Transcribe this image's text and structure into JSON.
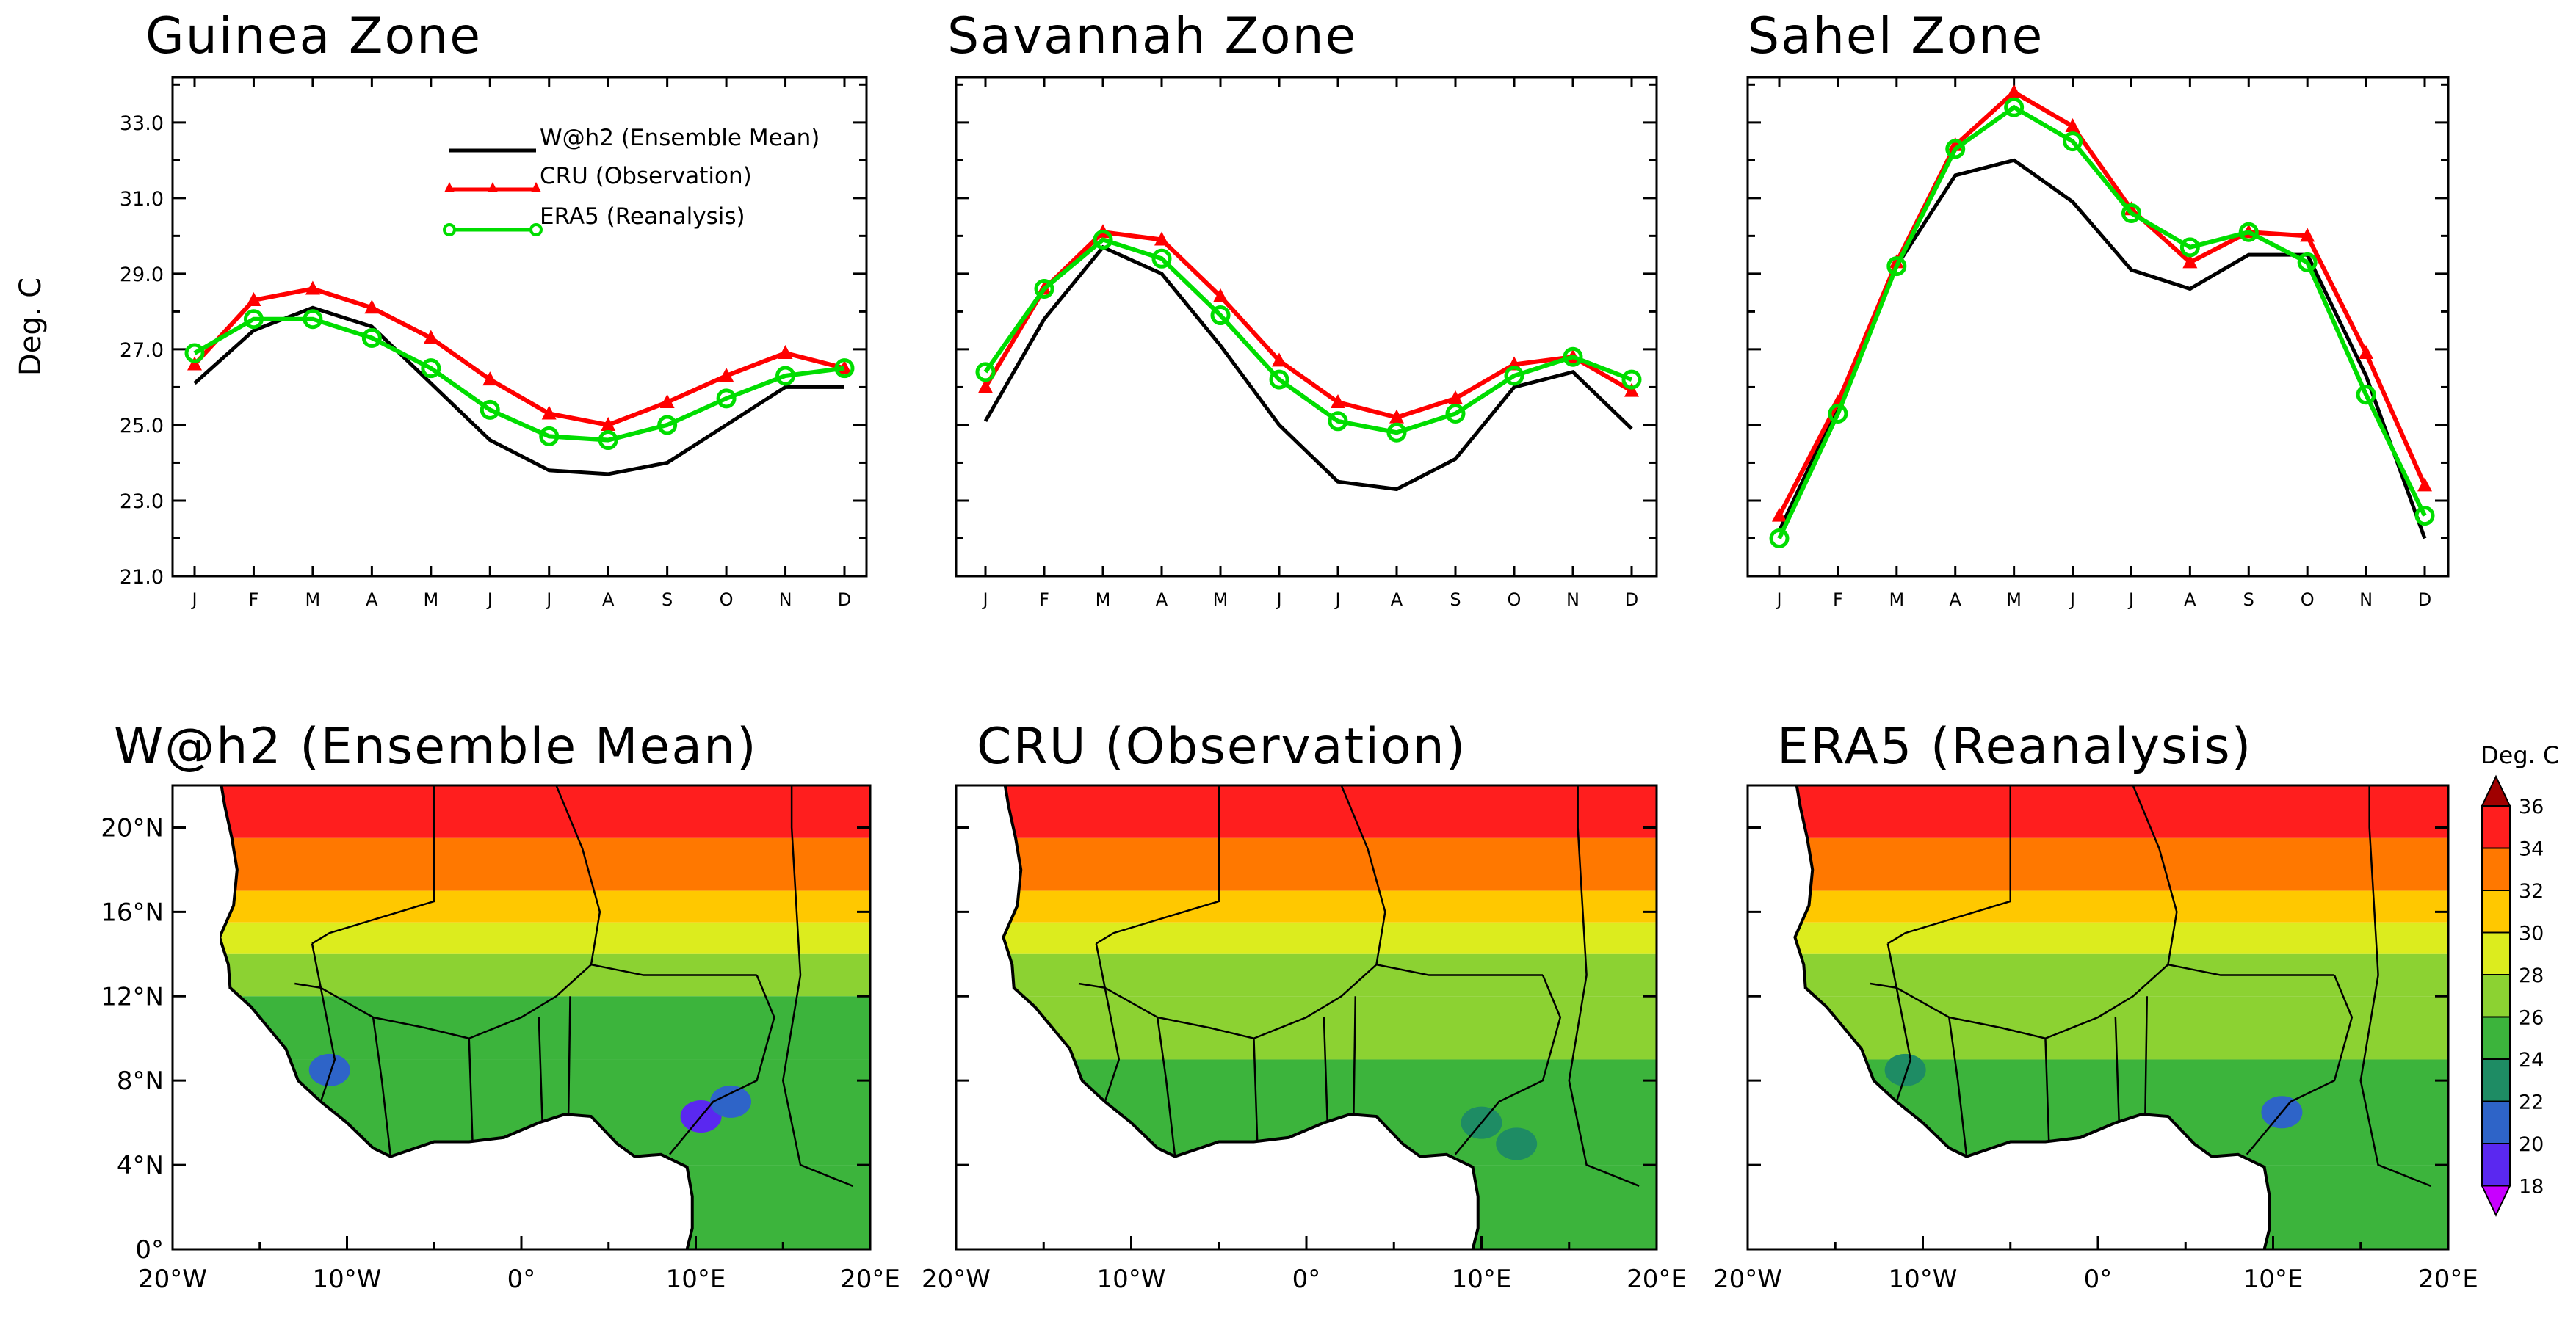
{
  "chart_data": [
    {
      "type": "line",
      "title": "Guinea Zone",
      "ylabel": "Deg. C",
      "categories": [
        "J",
        "F",
        "M",
        "A",
        "M",
        "J",
        "J",
        "A",
        "S",
        "O",
        "N",
        "D"
      ],
      "ylim": [
        21.0,
        34.2
      ],
      "yticks": [
        "21.0",
        "23.0",
        "25.0",
        "27.0",
        "29.0",
        "31.0",
        "33.0"
      ],
      "series": [
        {
          "name": "W@h2 (Ensemble Mean)",
          "color": "#000000",
          "marker": "none",
          "values": [
            26.1,
            27.5,
            28.1,
            27.6,
            26.1,
            24.6,
            23.8,
            23.7,
            24.0,
            25.0,
            26.0,
            26.0
          ]
        },
        {
          "name": "CRU (Observation)",
          "color": "#ff0000",
          "marker": "triangle",
          "values": [
            26.6,
            28.3,
            28.6,
            28.1,
            27.3,
            26.2,
            25.3,
            25.0,
            25.6,
            26.3,
            26.9,
            26.5
          ]
        },
        {
          "name": "ERA5 (Reanalysis)",
          "color": "#00dd00",
          "marker": "circle",
          "values": [
            26.9,
            27.8,
            27.8,
            27.3,
            26.5,
            25.4,
            24.7,
            24.6,
            25.0,
            25.7,
            26.3,
            26.5
          ]
        }
      ]
    },
    {
      "type": "line",
      "title": "Savannah Zone",
      "categories": [
        "J",
        "F",
        "M",
        "A",
        "M",
        "J",
        "J",
        "A",
        "S",
        "O",
        "N",
        "D"
      ],
      "ylim": [
        21.0,
        34.2
      ],
      "series": [
        {
          "name": "W@h2 (Ensemble Mean)",
          "color": "#000000",
          "marker": "none",
          "values": [
            25.1,
            27.8,
            29.7,
            29.0,
            27.1,
            25.0,
            23.5,
            23.3,
            24.1,
            26.0,
            26.4,
            24.9
          ]
        },
        {
          "name": "CRU (Observation)",
          "color": "#ff0000",
          "marker": "triangle",
          "values": [
            26.0,
            28.6,
            30.1,
            29.9,
            28.4,
            26.7,
            25.6,
            25.2,
            25.7,
            26.6,
            26.8,
            25.9
          ]
        },
        {
          "name": "ERA5 (Reanalysis)",
          "color": "#00dd00",
          "marker": "circle",
          "values": [
            26.4,
            28.6,
            29.9,
            29.4,
            27.9,
            26.2,
            25.1,
            24.8,
            25.3,
            26.3,
            26.8,
            26.2
          ]
        }
      ]
    },
    {
      "type": "line",
      "title": "Sahel Zone",
      "categories": [
        "J",
        "F",
        "M",
        "A",
        "M",
        "J",
        "J",
        "A",
        "S",
        "O",
        "N",
        "D"
      ],
      "ylim": [
        21.0,
        34.2
      ],
      "series": [
        {
          "name": "W@h2 (Ensemble Mean)",
          "color": "#000000",
          "marker": "none",
          "values": [
            22.2,
            25.5,
            29.2,
            31.6,
            32.0,
            30.9,
            29.1,
            28.6,
            29.5,
            29.5,
            26.3,
            22.0
          ]
        },
        {
          "name": "CRU (Observation)",
          "color": "#ff0000",
          "marker": "triangle",
          "values": [
            22.6,
            25.6,
            29.3,
            32.4,
            33.8,
            32.9,
            30.7,
            29.3,
            30.1,
            30.0,
            26.9,
            23.4
          ]
        },
        {
          "name": "ERA5 (Reanalysis)",
          "color": "#00dd00",
          "marker": "circle",
          "values": [
            22.0,
            25.3,
            29.2,
            32.3,
            33.4,
            32.5,
            30.6,
            29.7,
            30.1,
            29.3,
            25.8,
            22.6
          ]
        }
      ]
    },
    {
      "type": "heatmap",
      "title": "W@h2 (Ensemble Mean)",
      "xlim": [
        -20,
        20
      ],
      "ylim": [
        0,
        22
      ],
      "xticks": [
        "20°W",
        "10°W",
        "0°",
        "10°E",
        "20°E"
      ],
      "yticks": [
        "0°",
        "4°N",
        "8°N",
        "12°N",
        "16°N",
        "20°N"
      ],
      "zones": [
        {
          "lat": [
            19.5,
            22
          ],
          "value": 34.5
        },
        {
          "lat": [
            17,
            19.5
          ],
          "value": 33
        },
        {
          "lat": [
            15.5,
            17
          ],
          "value": 31
        },
        {
          "lat": [
            14,
            15.5
          ],
          "value": 29
        },
        {
          "lat": [
            12,
            14
          ],
          "value": 27
        },
        {
          "lat": [
            9,
            12
          ],
          "value": 25
        },
        {
          "lat": [
            4,
            9
          ],
          "value": 24
        },
        {
          "lat": [
            0,
            4
          ],
          "value": 25
        }
      ],
      "spots": [
        {
          "lon": -11,
          "lat": 8.5,
          "value": 21
        },
        {
          "lon": 10.3,
          "lat": 6.3,
          "value": 18.5
        },
        {
          "lon": 12,
          "lat": 7,
          "value": 21
        }
      ]
    },
    {
      "type": "heatmap",
      "title": "CRU (Observation)",
      "xlim": [
        -20,
        20
      ],
      "ylim": [
        0,
        22
      ],
      "xticks": [
        "20°W",
        "10°W",
        "0°",
        "10°E",
        "20°E"
      ],
      "yticks": [
        "0°",
        "4°N",
        "8°N",
        "12°N",
        "16°N",
        "20°N"
      ],
      "zones": [
        {
          "lat": [
            19.5,
            22
          ],
          "value": 34
        },
        {
          "lat": [
            17,
            19.5
          ],
          "value": 32.5
        },
        {
          "lat": [
            15.5,
            17
          ],
          "value": 31
        },
        {
          "lat": [
            14,
            15.5
          ],
          "value": 29
        },
        {
          "lat": [
            12,
            14
          ],
          "value": 27.5
        },
        {
          "lat": [
            9,
            12
          ],
          "value": 26.5
        },
        {
          "lat": [
            4,
            9
          ],
          "value": 25
        },
        {
          "lat": [
            0,
            4
          ],
          "value": 25.5
        }
      ],
      "spots": [
        {
          "lon": 10,
          "lat": 6,
          "value": 23
        },
        {
          "lon": 12,
          "lat": 5,
          "value": 23
        }
      ]
    },
    {
      "type": "heatmap",
      "title": "ERA5 (Reanalysis)",
      "xlim": [
        -20,
        20
      ],
      "ylim": [
        0,
        22
      ],
      "xticks": [
        "20°W",
        "10°W",
        "0°",
        "10°E",
        "20°E"
      ],
      "yticks": [
        "0°",
        "4°N",
        "8°N",
        "12°N",
        "16°N",
        "20°N"
      ],
      "zones": [
        {
          "lat": [
            19.5,
            22
          ],
          "value": 34.5
        },
        {
          "lat": [
            17,
            19.5
          ],
          "value": 32.5
        },
        {
          "lat": [
            15.5,
            17
          ],
          "value": 31
        },
        {
          "lat": [
            14,
            15.5
          ],
          "value": 29
        },
        {
          "lat": [
            12,
            14
          ],
          "value": 27.5
        },
        {
          "lat": [
            9,
            12
          ],
          "value": 26
        },
        {
          "lat": [
            4,
            9
          ],
          "value": 24.5
        },
        {
          "lat": [
            0,
            4
          ],
          "value": 25
        }
      ],
      "spots": [
        {
          "lon": 10.5,
          "lat": 6.5,
          "value": 21
        },
        {
          "lon": -11,
          "lat": 8.5,
          "value": 23
        }
      ]
    },
    {
      "type": "colorbar",
      "title": "Deg. C",
      "levels": [
        "18",
        "20",
        "22",
        "24",
        "26",
        "28",
        "30",
        "32",
        "34",
        "36"
      ],
      "colors": [
        "#c800ff",
        "#5a28f0",
        "#2e64c8",
        "#1e8c64",
        "#3cb43c",
        "#8cd232",
        "#dcec1e",
        "#ffc800",
        "#ff7800",
        "#ff1e1e",
        "#a00000"
      ]
    }
  ]
}
